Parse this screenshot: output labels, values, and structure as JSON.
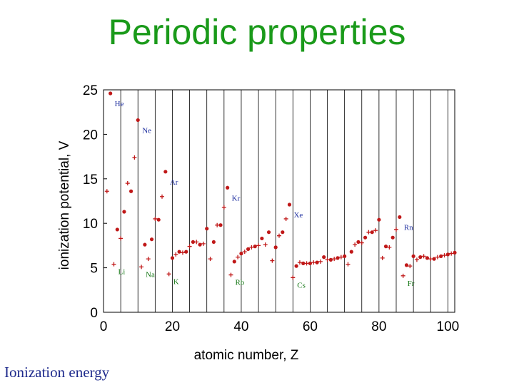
{
  "slide": {
    "title": "Periodic properties",
    "caption": "Ionization energy"
  },
  "colors": {
    "title": "#1a9a1a",
    "points": "#c01818",
    "caption": "#1e2a8c",
    "label_green": "#1a7a1a",
    "label_blue": "#2030a0"
  },
  "chart_data": {
    "type": "scatter",
    "title": "",
    "xlabel": "atomic number, Z",
    "ylabel": "ionization potential, V",
    "xlim": [
      0,
      102
    ],
    "ylim": [
      0,
      25
    ],
    "xticks": [
      0,
      20,
      40,
      60,
      80,
      100
    ],
    "yticks": [
      0,
      5,
      10,
      15,
      20,
      25
    ],
    "grid": "vertical",
    "series": [
      {
        "x": [
          1,
          2,
          3,
          4,
          5,
          6,
          7,
          8,
          9,
          10,
          11,
          12,
          13,
          14,
          15,
          16,
          17,
          18,
          19,
          20,
          21,
          22,
          23,
          24,
          25,
          26,
          27,
          28,
          29,
          30,
          31,
          32,
          33,
          34,
          35,
          36,
          37,
          38,
          39,
          40,
          41,
          42,
          43,
          44,
          45,
          46,
          47,
          48,
          49,
          50,
          51,
          52,
          53,
          54,
          55,
          56,
          57,
          58,
          59,
          60,
          61,
          62,
          63,
          64,
          65,
          66,
          67,
          68,
          69,
          70,
          71,
          72,
          73,
          74,
          75,
          76,
          77,
          78,
          79,
          80,
          81,
          82,
          83,
          84,
          85,
          86,
          87,
          88,
          89,
          90,
          91,
          92,
          93,
          94,
          95,
          96,
          97,
          98,
          99,
          100,
          101,
          102
        ],
        "y": [
          13.6,
          24.6,
          5.4,
          9.3,
          8.3,
          11.3,
          14.5,
          13.6,
          17.4,
          21.6,
          5.1,
          7.6,
          6.0,
          8.2,
          10.5,
          10.4,
          13.0,
          15.8,
          4.3,
          6.1,
          6.5,
          6.8,
          6.7,
          6.8,
          7.4,
          7.9,
          7.9,
          7.6,
          7.7,
          9.4,
          6.0,
          7.9,
          9.8,
          9.8,
          11.8,
          14.0,
          4.2,
          5.7,
          6.2,
          6.6,
          6.8,
          7.1,
          7.3,
          7.4,
          7.5,
          8.3,
          7.6,
          9.0,
          5.8,
          7.3,
          8.6,
          9.0,
          10.5,
          12.1,
          3.9,
          5.2,
          5.6,
          5.5,
          5.5,
          5.5,
          5.6,
          5.6,
          5.7,
          6.2,
          5.9,
          5.9,
          6.0,
          6.1,
          6.2,
          6.3,
          5.4,
          6.8,
          7.6,
          7.9,
          7.8,
          8.4,
          9.0,
          9.0,
          9.2,
          10.4,
          6.1,
          7.4,
          7.3,
          8.4,
          9.3,
          10.7,
          4.1,
          5.3,
          5.2,
          6.3,
          5.9,
          6.2,
          6.3,
          6.1,
          6.0,
          6.0,
          6.2,
          6.3,
          6.4,
          6.5,
          6.6,
          6.7
        ]
      }
    ],
    "annotations": [
      {
        "text": "He",
        "x": 2,
        "y": 24.6,
        "group": "noble"
      },
      {
        "text": "Ne",
        "x": 10,
        "y": 21.6,
        "group": "noble"
      },
      {
        "text": "Ar",
        "x": 18,
        "y": 15.8,
        "group": "noble"
      },
      {
        "text": "Kr",
        "x": 36,
        "y": 14.0,
        "group": "noble"
      },
      {
        "text": "Xe",
        "x": 54,
        "y": 12.1,
        "group": "noble"
      },
      {
        "text": "Rn",
        "x": 86,
        "y": 10.7,
        "group": "noble"
      },
      {
        "text": "Li",
        "x": 3,
        "y": 5.4,
        "group": "alkali"
      },
      {
        "text": "Na",
        "x": 11,
        "y": 5.1,
        "group": "alkali"
      },
      {
        "text": "K",
        "x": 19,
        "y": 4.3,
        "group": "alkali"
      },
      {
        "text": "Rb",
        "x": 37,
        "y": 4.2,
        "group": "alkali"
      },
      {
        "text": "Cs",
        "x": 55,
        "y": 3.9,
        "group": "alkali"
      },
      {
        "text": "Fr",
        "x": 87,
        "y": 4.1,
        "group": "alkali"
      }
    ]
  }
}
